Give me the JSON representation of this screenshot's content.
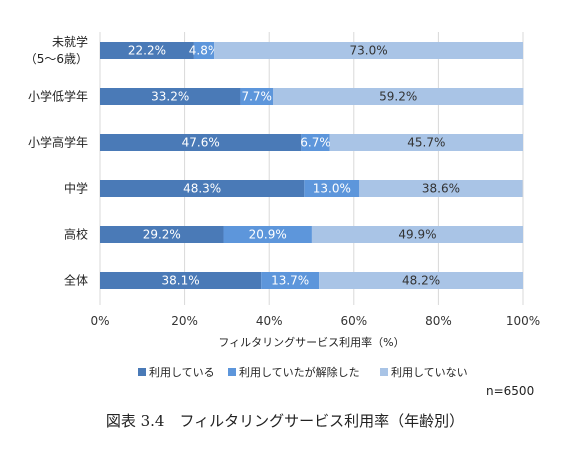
{
  "chart_data": {
    "type": "bar",
    "orientation": "horizontal",
    "stacked": true,
    "categories": [
      "未就学\n（5〜6歳）",
      "小学低学年",
      "小学高学年",
      "中学",
      "高校",
      "全体"
    ],
    "series": [
      {
        "name": "利用している",
        "color": "#4a7ab7",
        "values": [
          22.2,
          33.2,
          47.6,
          48.3,
          29.2,
          38.1
        ]
      },
      {
        "name": "利用していたが解除した",
        "color": "#5d96db",
        "values": [
          4.8,
          7.7,
          6.7,
          13.0,
          20.9,
          13.7
        ]
      },
      {
        "name": "利用していない",
        "color": "#a9c4e6",
        "values": [
          73.0,
          59.2,
          45.7,
          38.6,
          49.9,
          48.2
        ]
      }
    ],
    "value_labels": [
      [
        "22.2%",
        "4.8%",
        "73.0%"
      ],
      [
        "33.2%",
        "7.7%",
        "59.2%"
      ],
      [
        "47.6%",
        "6.7%",
        "45.7%"
      ],
      [
        "48.3%",
        "13.0%",
        "38.6%"
      ],
      [
        "29.2%",
        "20.9%",
        "49.9%"
      ],
      [
        "38.1%",
        "13.7%",
        "48.2%"
      ]
    ],
    "xlabel": "フィルタリングサービス利用率（%）",
    "xlim": [
      0,
      100
    ],
    "xticks": [
      "0%",
      "20%",
      "40%",
      "60%",
      "80%",
      "100%"
    ],
    "grid": true,
    "legend_position": "bottom"
  },
  "note": "n=6500",
  "caption": "図表 3.4　フィルタリングサービス利用率（年齢別）"
}
